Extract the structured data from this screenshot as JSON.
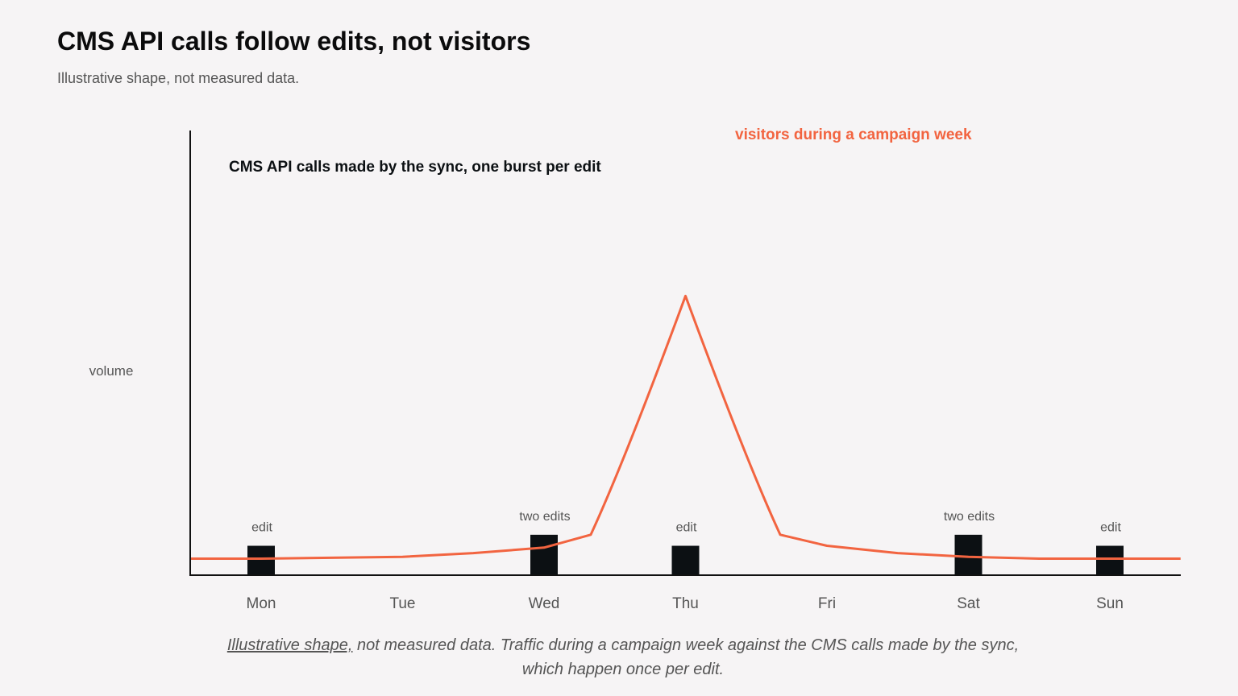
{
  "title": "CMS API calls follow edits, not visitors",
  "subtitle": "Illustrative shape, not measured data.",
  "caption": {
    "underlined": "Illustrative shape,",
    "rest": " not measured data. Traffic during a campaign week against the CMS calls made by the sync, which happen once per edit."
  },
  "colors": {
    "background": "#f6f4f5",
    "visitors": "#f26440",
    "api_calls": "#0c1013",
    "axis": "#111111",
    "muted_text": "#555555"
  },
  "chart_data": {
    "type": "bar",
    "ylabel": "volume",
    "ylim": [
      0,
      100
    ],
    "grid": false,
    "categories": [
      "Mon",
      "Tue",
      "Wed",
      "Thu",
      "Fri",
      "Sat",
      "Sun"
    ],
    "series": [
      {
        "name": "CMS API calls made by the sync, one burst per edit",
        "type": "bar",
        "values": [
          8,
          0,
          11,
          8,
          0,
          11,
          8
        ],
        "labels": [
          "edit",
          "",
          "two edits",
          "edit",
          "",
          "two edits",
          "edit"
        ]
      },
      {
        "name": "visitors during a campaign week",
        "type": "line",
        "x": [
          -0.5,
          0,
          1,
          1.5,
          2,
          2.33,
          3,
          3.67,
          4,
          4.5,
          5,
          5.5,
          6,
          6.5
        ],
        "values": [
          4.5,
          4.5,
          5,
          6,
          7.5,
          11,
          76,
          11,
          8,
          6,
          5,
          4.5,
          4.5,
          4.5
        ]
      }
    ]
  }
}
